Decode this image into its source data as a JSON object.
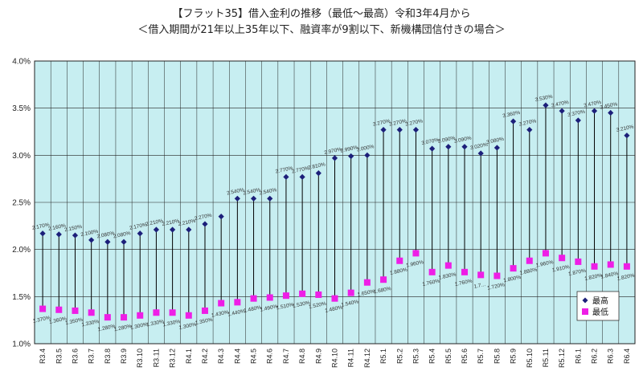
{
  "title_line1": "【フラット35】借入金利の推移（最低～最高）令和3年4月から",
  "title_line2": "＜借入期間が21年以上35年以下、融資率が9割以下、新機構団信付きの場合＞",
  "colors": {
    "plot_bg": "#c7eef1",
    "high": "#1c1f7a",
    "low": "#ee1ee6",
    "range_line": "#000000",
    "grid": "#222222"
  },
  "chart_data": {
    "type": "scatter",
    "title": "【フラット35】借入金利の推移（最低～最高）令和3年4月から",
    "subtitle": "＜借入期間が21年以上35年以下、融資率が9割以下、新機構団信付きの場合＞",
    "xlabel": "",
    "ylabel": "",
    "ylim": [
      1.0,
      4.0
    ],
    "yticks": [
      "1.0%",
      "1.5%",
      "2.0%",
      "2.5%",
      "3.0%",
      "3.5%",
      "4.0%"
    ],
    "grid": true,
    "legend_position": "bottom-right",
    "categories": [
      "R3.4",
      "R3.5",
      "R3.6",
      "R3.7",
      "R3.8",
      "R3.9",
      "R3.10",
      "R3.11",
      "R3.12",
      "R4.1",
      "R4.2",
      "R4.3",
      "R4.4",
      "R4.5",
      "R4.6",
      "R4.7",
      "R4.8",
      "R4.9",
      "R4.10",
      "R4.11",
      "R4.12",
      "R5.1",
      "R5.2",
      "R5.3",
      "R5.4",
      "R5.5",
      "R5.6",
      "R5.7",
      "R5.8",
      "R5.9",
      "R5.10",
      "R5.11",
      "R5.12",
      "R6.1",
      "R6.2",
      "R6.3",
      "R6.4"
    ],
    "series": [
      {
        "name": "最高",
        "values": [
          2.17,
          2.16,
          2.15,
          2.1,
          2.08,
          2.08,
          2.17,
          2.21,
          2.21,
          2.21,
          2.27,
          2.35,
          2.54,
          2.54,
          2.54,
          2.77,
          2.77,
          2.81,
          2.97,
          2.99,
          3.0,
          3.27,
          3.27,
          3.27,
          3.07,
          3.09,
          3.09,
          3.02,
          3.08,
          3.36,
          3.27,
          3.53,
          3.47,
          3.37,
          3.47,
          3.45,
          3.21
        ],
        "labels": [
          "2.170%",
          "2.160%",
          "2.150%",
          "2.100%",
          "2.080%",
          "2.080%",
          "2.170%",
          "2.210%",
          "2.210%",
          "2.210%",
          "2.270%",
          "",
          "2.540%",
          "2.540%",
          "2.540%",
          "2.770%",
          "2.770%",
          "2.810%",
          "2.970%",
          "2.990%",
          "3.000%",
          "3.270%",
          "3.270%",
          "3.270%",
          "3.070%",
          "3.090%",
          "3.090%",
          "3.020%",
          "3.080%",
          "3.360%",
          "3.270%",
          "3.530%",
          "3.470%",
          "3.370%",
          "3.470%",
          "3.450%",
          "3.210%"
        ]
      },
      {
        "name": "最低",
        "values": [
          1.37,
          1.36,
          1.35,
          1.33,
          1.28,
          1.28,
          1.3,
          1.33,
          1.33,
          1.3,
          1.35,
          1.43,
          1.44,
          1.48,
          1.49,
          1.51,
          1.53,
          1.52,
          1.48,
          1.54,
          1.65,
          1.68,
          1.88,
          1.96,
          1.76,
          1.83,
          1.76,
          1.73,
          1.72,
          1.8,
          1.88,
          1.96,
          1.91,
          1.87,
          1.82,
          1.84,
          1.82
        ],
        "labels": [
          "1.370%",
          "1.360%",
          "1.350%",
          "1.330%",
          "1.280%",
          "1.280%",
          "1.300%",
          "1.330%",
          "1.330%",
          "1.300%",
          "1.350%",
          "1.430%",
          "1.440%",
          "1.480%",
          "1.490%",
          "1.510%",
          "1.530%",
          "1.520%",
          "1.480%",
          "1.540%",
          "1.650%",
          "1.680%",
          "1.880%",
          "1.960%",
          "1.760%",
          "1.830%",
          "1.760%",
          "1.7...",
          "1.720%",
          "1.800%",
          "1.880%",
          "1.960%",
          "1.910%",
          "1.870%",
          "1.820%",
          "1.840%",
          "1.820%"
        ]
      }
    ]
  }
}
